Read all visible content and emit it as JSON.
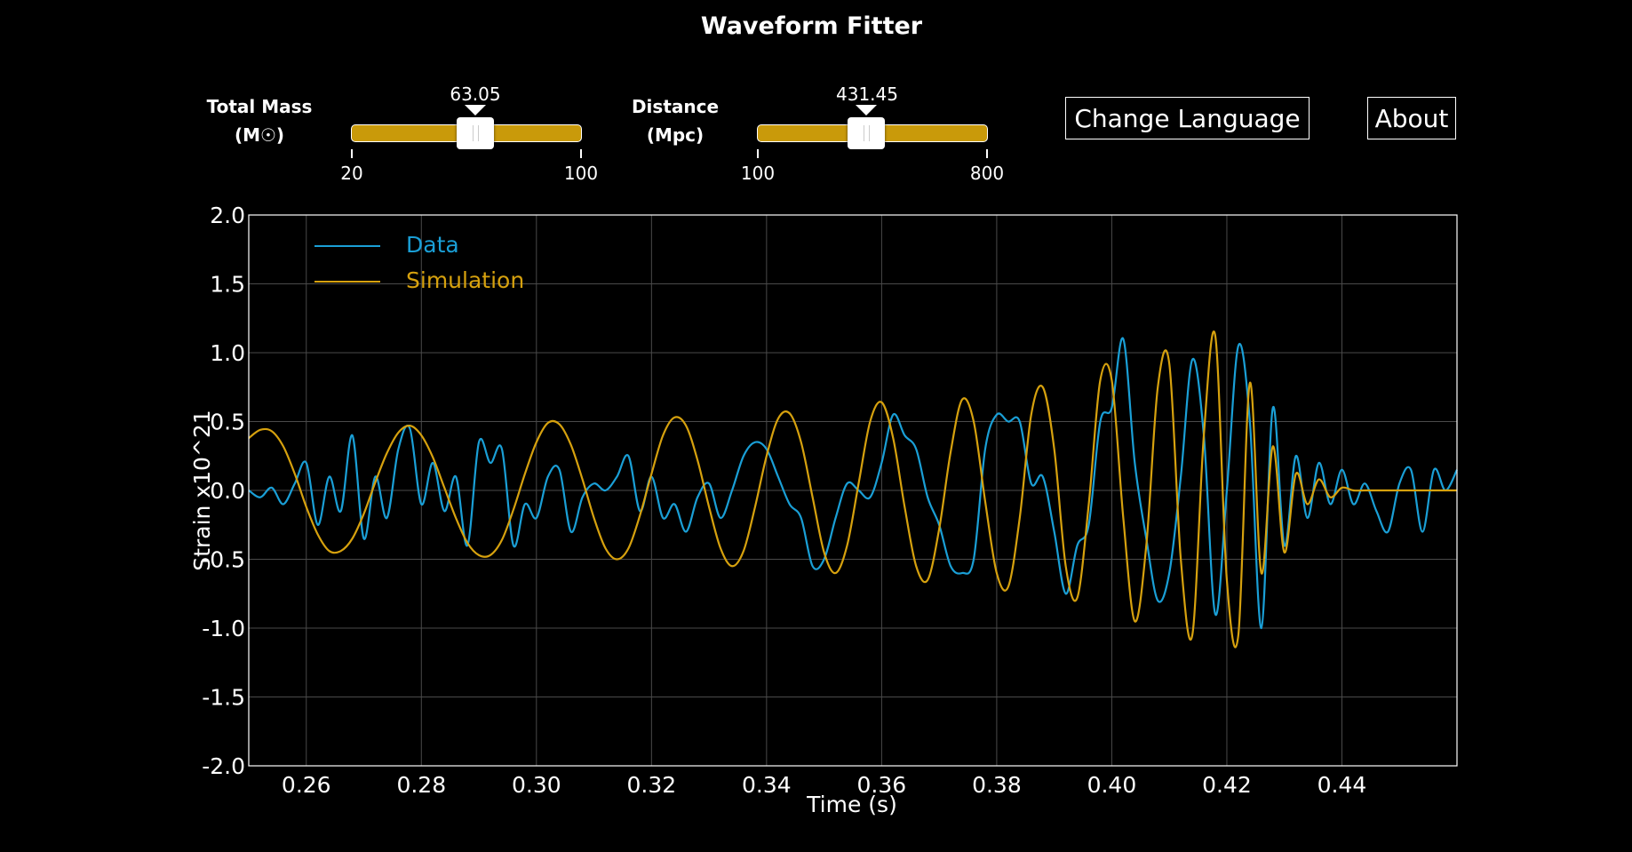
{
  "app": {
    "title": "Waveform Fitter"
  },
  "controls": {
    "mass": {
      "label_line1": "Total Mass",
      "label_line2": "(M☉)",
      "value": "63.05",
      "min": "20",
      "max": "100"
    },
    "distance": {
      "label_line1": "Distance",
      "label_line2": "(Mpc)",
      "value": "431.45",
      "min": "100",
      "max": "800"
    },
    "change_language_label": "Change Language",
    "about_label": "About"
  },
  "colors": {
    "data": "#1a9fd6",
    "simulation": "#d6a10e",
    "slider": "#c99a0a"
  },
  "chart_data": {
    "type": "line",
    "xlabel": "Time (s)",
    "ylabel": "Strain x10^21",
    "xlim": [
      0.25,
      0.46
    ],
    "ylim": [
      -2.0,
      2.0
    ],
    "xticks": [
      0.26,
      0.28,
      0.3,
      0.32,
      0.34,
      0.36,
      0.38,
      0.4,
      0.42,
      0.44
    ],
    "xtick_labels": [
      "0.26",
      "0.28",
      "0.30",
      "0.32",
      "0.34",
      "0.36",
      "0.38",
      "0.40",
      "0.42",
      "0.44"
    ],
    "yticks": [
      2.0,
      1.5,
      1.0,
      0.5,
      0.0,
      -0.5,
      -1.0,
      -1.5,
      -2.0
    ],
    "ytick_labels": [
      "2.0",
      "1.5",
      "1.0",
      "0.5",
      "0.0",
      "-0.5",
      "-1.0",
      "-1.5",
      "-2.0"
    ],
    "grid": true,
    "legend_position": "top-left",
    "series": [
      {
        "name": "Data",
        "x": [
          0.25,
          0.252,
          0.254,
          0.256,
          0.258,
          0.26,
          0.262,
          0.264,
          0.266,
          0.268,
          0.27,
          0.272,
          0.274,
          0.276,
          0.278,
          0.28,
          0.282,
          0.284,
          0.286,
          0.288,
          0.29,
          0.292,
          0.294,
          0.296,
          0.298,
          0.3,
          0.302,
          0.304,
          0.306,
          0.308,
          0.31,
          0.312,
          0.314,
          0.316,
          0.318,
          0.32,
          0.322,
          0.324,
          0.326,
          0.328,
          0.33,
          0.332,
          0.334,
          0.336,
          0.338,
          0.34,
          0.342,
          0.344,
          0.346,
          0.348,
          0.35,
          0.352,
          0.354,
          0.356,
          0.358,
          0.36,
          0.362,
          0.364,
          0.366,
          0.368,
          0.37,
          0.372,
          0.374,
          0.376,
          0.378,
          0.38,
          0.382,
          0.384,
          0.386,
          0.388,
          0.39,
          0.392,
          0.394,
          0.396,
          0.398,
          0.4,
          0.402,
          0.404,
          0.406,
          0.408,
          0.41,
          0.412,
          0.414,
          0.416,
          0.418,
          0.42,
          0.422,
          0.424,
          0.426,
          0.428,
          0.43,
          0.432,
          0.434,
          0.436,
          0.438,
          0.44,
          0.442,
          0.444,
          0.446,
          0.448,
          0.45,
          0.452,
          0.454,
          0.456,
          0.458,
          0.46
        ],
        "y": [
          0.0,
          -0.05,
          0.02,
          -0.1,
          0.05,
          0.2,
          -0.25,
          0.1,
          -0.15,
          0.4,
          -0.35,
          0.1,
          -0.2,
          0.3,
          0.45,
          -0.1,
          0.2,
          -0.15,
          0.1,
          -0.4,
          0.35,
          0.2,
          0.3,
          -0.4,
          -0.1,
          -0.2,
          0.1,
          0.15,
          -0.3,
          -0.05,
          0.05,
          0.0,
          0.1,
          0.25,
          -0.15,
          0.1,
          -0.2,
          -0.1,
          -0.3,
          -0.05,
          0.05,
          -0.2,
          0.0,
          0.25,
          0.35,
          0.3,
          0.1,
          -0.1,
          -0.2,
          -0.55,
          -0.5,
          -0.2,
          0.05,
          0.0,
          -0.05,
          0.2,
          0.55,
          0.4,
          0.3,
          -0.05,
          -0.25,
          -0.55,
          -0.6,
          -0.5,
          0.3,
          0.55,
          0.5,
          0.5,
          0.05,
          0.1,
          -0.3,
          -0.75,
          -0.4,
          -0.25,
          0.5,
          0.6,
          1.1,
          0.2,
          -0.35,
          -0.8,
          -0.6,
          0.1,
          0.95,
          0.4,
          -0.9,
          0.0,
          1.05,
          0.5,
          -1.0,
          0.6,
          -0.4,
          0.25,
          -0.2,
          0.2,
          -0.1,
          0.15,
          -0.1,
          0.05,
          -0.15,
          -0.3,
          0.05,
          0.15,
          -0.3,
          0.15,
          0.0,
          0.15
        ]
      },
      {
        "name": "Simulation",
        "x": [
          0.25,
          0.252,
          0.254,
          0.256,
          0.258,
          0.26,
          0.262,
          0.264,
          0.266,
          0.268,
          0.27,
          0.272,
          0.274,
          0.276,
          0.278,
          0.28,
          0.282,
          0.284,
          0.286,
          0.288,
          0.29,
          0.292,
          0.294,
          0.296,
          0.298,
          0.3,
          0.302,
          0.304,
          0.306,
          0.308,
          0.31,
          0.312,
          0.314,
          0.316,
          0.318,
          0.32,
          0.322,
          0.324,
          0.326,
          0.328,
          0.33,
          0.332,
          0.334,
          0.336,
          0.338,
          0.34,
          0.342,
          0.344,
          0.346,
          0.348,
          0.35,
          0.352,
          0.354,
          0.356,
          0.358,
          0.36,
          0.362,
          0.364,
          0.366,
          0.368,
          0.37,
          0.372,
          0.374,
          0.376,
          0.378,
          0.38,
          0.382,
          0.384,
          0.386,
          0.388,
          0.39,
          0.392,
          0.394,
          0.396,
          0.398,
          0.4,
          0.402,
          0.404,
          0.406,
          0.408,
          0.41,
          0.412,
          0.414,
          0.416,
          0.418,
          0.42,
          0.422,
          0.424,
          0.426,
          0.428,
          0.43,
          0.432,
          0.434,
          0.436,
          0.438,
          0.44,
          0.442,
          0.444,
          0.446,
          0.448,
          0.45,
          0.452,
          0.454,
          0.456,
          0.458,
          0.46
        ],
        "y": [
          0.38,
          0.44,
          0.43,
          0.32,
          0.12,
          -0.12,
          -0.32,
          -0.44,
          -0.44,
          -0.35,
          -0.17,
          0.06,
          0.27,
          0.42,
          0.47,
          0.4,
          0.24,
          0.02,
          -0.2,
          -0.38,
          -0.47,
          -0.47,
          -0.36,
          -0.14,
          0.12,
          0.35,
          0.49,
          0.48,
          0.33,
          0.08,
          -0.2,
          -0.42,
          -0.5,
          -0.42,
          -0.18,
          0.12,
          0.4,
          0.53,
          0.47,
          0.22,
          -0.12,
          -0.42,
          -0.55,
          -0.44,
          -0.12,
          0.25,
          0.52,
          0.56,
          0.35,
          -0.05,
          -0.45,
          -0.6,
          -0.4,
          0.05,
          0.5,
          0.64,
          0.38,
          -0.12,
          -0.55,
          -0.65,
          -0.28,
          0.28,
          0.66,
          0.5,
          -0.08,
          -0.6,
          -0.7,
          -0.2,
          0.55,
          0.75,
          0.3,
          -0.55,
          -0.78,
          -0.1,
          0.8,
          0.8,
          -0.2,
          -0.95,
          -0.4,
          0.75,
          0.92,
          -0.5,
          -1.05,
          0.4,
          1.12,
          -0.65,
          -1.05,
          0.78,
          -0.6,
          0.32,
          -0.45,
          0.12,
          -0.1,
          0.08,
          -0.05,
          0.02,
          0.0,
          0.0,
          0.0,
          0.0,
          0.0,
          0.0,
          0.0,
          0.0,
          0.0,
          0.0
        ]
      }
    ]
  }
}
